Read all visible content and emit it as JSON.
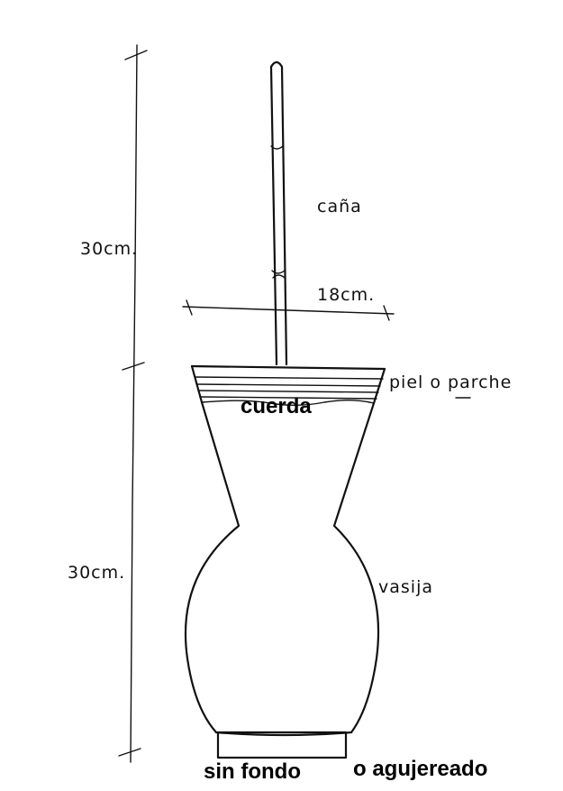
{
  "labels": {
    "cana": "caña",
    "width_dim": "18cm.",
    "piel": "piel o parche",
    "cuerda": "cuerda",
    "vasija": "vasija",
    "sin_fondo": "sin fondo",
    "agujereado": "o agujereado"
  },
  "dimensions": {
    "upper_height": "30cm.",
    "lower_height": "30cm."
  }
}
